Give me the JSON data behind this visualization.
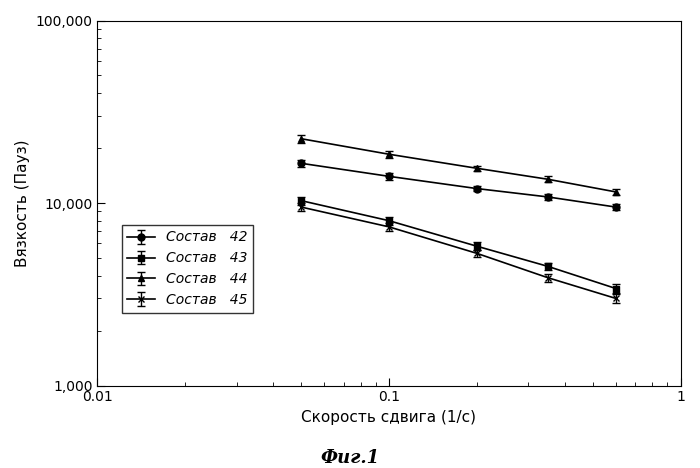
{
  "title": "",
  "xlabel": "Скорость сдвига (1/с)",
  "ylabel": "Вязкость (Пауз)",
  "caption": "Фиг.1",
  "xlim": [
    0.01,
    1.0
  ],
  "ylim": [
    1000,
    100000
  ],
  "series": [
    {
      "label": "Состав   42",
      "marker": "o",
      "x": [
        0.05,
        0.1,
        0.2,
        0.35,
        0.6
      ],
      "y": [
        16500,
        14000,
        12000,
        10800,
        9500
      ],
      "yerr": [
        700,
        550,
        430,
        380,
        320
      ]
    },
    {
      "label": "Состав   43",
      "marker": "s",
      "x": [
        0.05,
        0.1,
        0.2,
        0.35,
        0.6
      ],
      "y": [
        10300,
        8000,
        5800,
        4500,
        3400
      ],
      "yerr": [
        550,
        420,
        280,
        220,
        180
      ]
    },
    {
      "label": "Состав   44",
      "marker": "^",
      "x": [
        0.05,
        0.1,
        0.2,
        0.35,
        0.6
      ],
      "y": [
        22500,
        18500,
        15500,
        13500,
        11500
      ],
      "yerr": [
        1100,
        750,
        550,
        480,
        400
      ]
    },
    {
      "label": "Состав   45",
      "marker": "x",
      "x": [
        0.05,
        0.1,
        0.2,
        0.35,
        0.6
      ],
      "y": [
        9500,
        7400,
        5300,
        3900,
        3000
      ],
      "yerr": [
        480,
        350,
        260,
        200,
        170
      ]
    }
  ],
  "background_color": "#ffffff",
  "line_color": "#000000",
  "fontsize_labels": 11,
  "fontsize_ticks": 10,
  "fontsize_caption": 13,
  "fontsize_legend": 10
}
